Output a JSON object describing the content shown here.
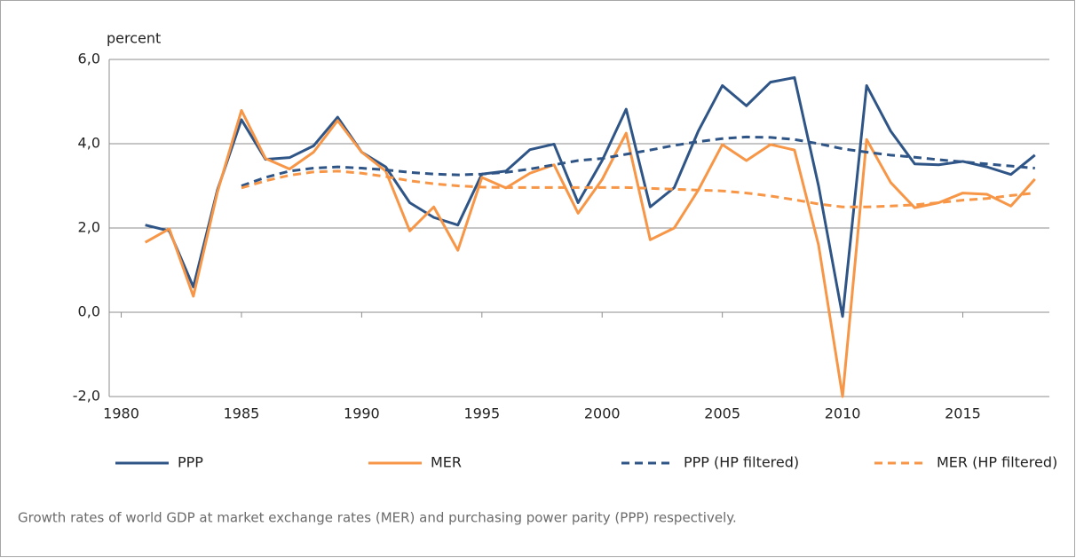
{
  "chart_data": {
    "type": "line",
    "y_label": "percent",
    "caption": "Growth rates of world GDP at market exchange rates (MER) and purchasing power parity (PPP) respectively.",
    "x": [
      1981,
      1982,
      1983,
      1984,
      1985,
      1986,
      1987,
      1988,
      1989,
      1990,
      1991,
      1992,
      1993,
      1994,
      1995,
      1996,
      1997,
      1998,
      1999,
      2000,
      2001,
      2002,
      2003,
      2004,
      2005,
      2006,
      2007,
      2008,
      2009,
      2010,
      2011,
      2012,
      2013,
      2014,
      2015,
      2016,
      2017,
      2018
    ],
    "xlim": [
      1979.5,
      2018.6
    ],
    "xticks": [
      1980,
      1985,
      1990,
      1995,
      2000,
      2005,
      2010,
      2015
    ],
    "ylim": [
      -2,
      6
    ],
    "yticks": [
      {
        "value": -2,
        "label": "-2,0"
      },
      {
        "value": 0,
        "label": "0,0"
      },
      {
        "value": 2,
        "label": "2,0"
      },
      {
        "value": 4,
        "label": "4,0"
      },
      {
        "value": 6,
        "label": "6,0"
      }
    ],
    "grid": true,
    "legend": "bottom",
    "series": [
      {
        "name": "PPP",
        "color": "#2f5587",
        "dashed": false,
        "values": [
          2.07,
          1.93,
          0.6,
          2.9,
          4.57,
          3.63,
          3.67,
          3.95,
          4.63,
          3.8,
          3.45,
          2.6,
          2.25,
          2.07,
          3.28,
          3.35,
          3.86,
          3.99,
          2.6,
          3.6,
          4.82,
          2.5,
          2.96,
          4.3,
          5.38,
          4.9,
          5.46,
          5.57,
          3.0,
          -0.1,
          5.38,
          4.3,
          3.52,
          3.5,
          3.58,
          3.45,
          3.27,
          3.73
        ]
      },
      {
        "name": "MER",
        "color": "#f79646",
        "dashed": false,
        "values": [
          1.66,
          1.98,
          0.38,
          2.85,
          4.79,
          3.65,
          3.4,
          3.8,
          4.55,
          3.8,
          3.35,
          1.93,
          2.5,
          1.47,
          3.2,
          2.95,
          3.3,
          3.5,
          2.35,
          3.15,
          4.25,
          1.72,
          2.0,
          2.9,
          3.98,
          3.6,
          3.98,
          3.85,
          1.6,
          -2.0,
          4.1,
          3.08,
          2.48,
          2.6,
          2.83,
          2.8,
          2.52,
          3.16
        ]
      },
      {
        "name": "PPP (HP filtered)",
        "color": "#2f5587",
        "dashed": true,
        "values": [
          null,
          null,
          null,
          null,
          3.0,
          3.2,
          3.35,
          3.42,
          3.45,
          3.42,
          3.38,
          3.32,
          3.28,
          3.26,
          3.28,
          3.32,
          3.4,
          3.5,
          3.6,
          3.65,
          3.75,
          3.85,
          3.96,
          4.05,
          4.12,
          4.16,
          4.15,
          4.1,
          4.0,
          3.88,
          3.8,
          3.73,
          3.68,
          3.62,
          3.57,
          3.52,
          3.47,
          3.42
        ]
      },
      {
        "name": "MER (HP filtered)",
        "color": "#f79646",
        "dashed": true,
        "values": [
          null,
          null,
          null,
          null,
          2.95,
          3.12,
          3.25,
          3.33,
          3.35,
          3.3,
          3.22,
          3.12,
          3.05,
          3.0,
          2.97,
          2.96,
          2.96,
          2.96,
          2.96,
          2.96,
          2.96,
          2.94,
          2.92,
          2.9,
          2.88,
          2.83,
          2.76,
          2.67,
          2.57,
          2.5,
          2.5,
          2.52,
          2.55,
          2.6,
          2.66,
          2.7,
          2.77,
          2.83
        ]
      }
    ]
  }
}
